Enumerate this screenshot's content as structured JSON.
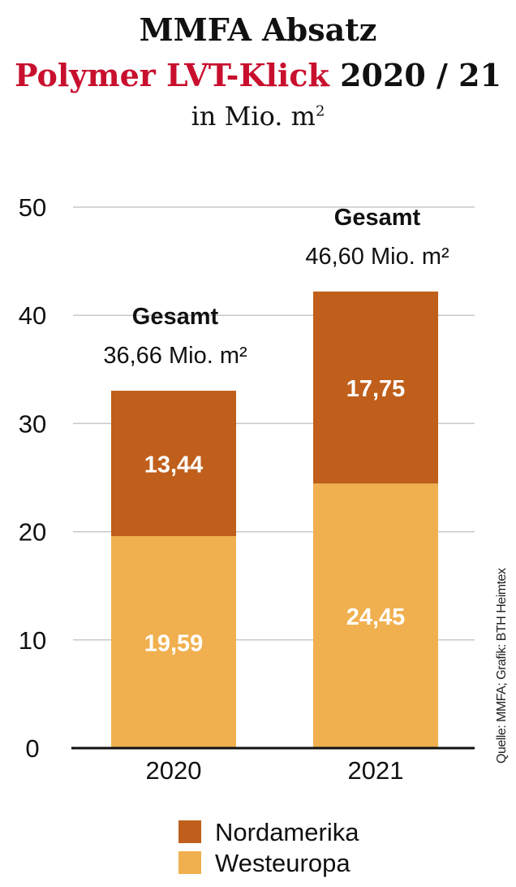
{
  "title": {
    "line1": "MMFA Absatz",
    "line2_highlight": "Polymer LVT-Klick",
    "line2_rest": "2020 / 21",
    "unit_text": "in Mio. m",
    "unit_sup": "2"
  },
  "source": "Quelle: MMFA; Grafik: BTH Heimtex",
  "colors": {
    "title_red": "#c8102e",
    "nordamerika": "#bf5f1b",
    "westeuropa": "#f0b04f",
    "grid": "#c8c8c8"
  },
  "chart_data": {
    "type": "bar",
    "stacked": true,
    "categories": [
      "2020",
      "2021"
    ],
    "series": [
      {
        "name": "Westeuropa",
        "values": [
          19.59,
          24.45
        ],
        "labels": [
          "19,59",
          "24,45"
        ],
        "color": "#f0b04f"
      },
      {
        "name": "Nordamerika",
        "values": [
          13.44,
          17.75
        ],
        "labels": [
          "13,44",
          "17,75"
        ],
        "color": "#bf5f1b"
      }
    ],
    "totals": [
      {
        "heading": "Gesamt",
        "value": "36,66 Mio. m²"
      },
      {
        "heading": "Gesamt",
        "value": "46,60 Mio. m²"
      }
    ],
    "yticks": [
      0,
      10,
      20,
      30,
      40,
      50
    ],
    "ylim": [
      0,
      50
    ],
    "grid": true,
    "legend": {
      "position": "bottom",
      "entries": [
        "Nordamerika",
        "Westeuropa"
      ]
    }
  }
}
